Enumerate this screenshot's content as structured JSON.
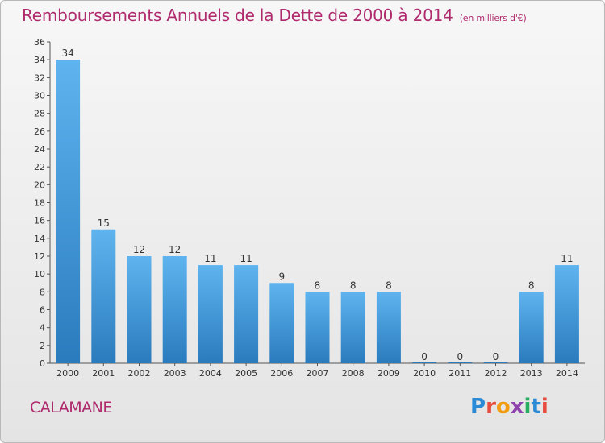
{
  "header": {
    "title": "Remboursements Annuels de la Dette de 2000 à 2014",
    "subtitle": "(en milliers d'€)"
  },
  "footer": {
    "commune": "CALAMANE",
    "logo_text": "Proxiti",
    "logo_colors": [
      "#2b8ad6",
      "#e74c3c",
      "#f39c12",
      "#8e44ad",
      "#27ae60",
      "#2b8ad6",
      "#e74c3c"
    ]
  },
  "chart_data": {
    "type": "bar",
    "title": "Remboursements Annuels de la Dette de 2000 à 2014",
    "subtitle": "(en milliers d'€)",
    "xlabel": "",
    "ylabel": "",
    "categories": [
      "2000",
      "2001",
      "2002",
      "2003",
      "2004",
      "2005",
      "2006",
      "2007",
      "2008",
      "2009",
      "2010",
      "2011",
      "2012",
      "2013",
      "2014"
    ],
    "values": [
      34,
      15,
      12,
      12,
      11,
      11,
      9,
      8,
      8,
      8,
      0,
      0,
      0,
      8,
      11
    ],
    "ylim": [
      0,
      36
    ],
    "yticks": [
      0,
      2,
      4,
      6,
      8,
      10,
      12,
      14,
      16,
      18,
      20,
      22,
      24,
      26,
      28,
      30,
      32,
      34,
      36
    ],
    "grid": false,
    "legend": "none",
    "bar_color_top": "#5fb4ef",
    "bar_color_bottom": "#2a7bbd"
  }
}
